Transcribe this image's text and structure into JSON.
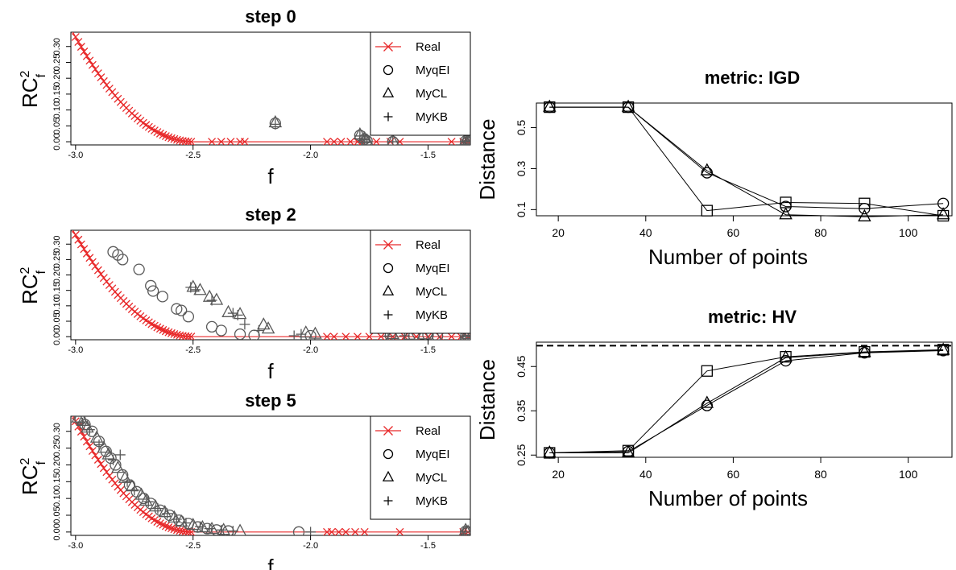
{
  "colors": {
    "real": "#e8292a",
    "marker": "#595959",
    "axis": "#000000"
  },
  "chart_data": [
    {
      "id": "step0",
      "type": "scatter",
      "title": "step 0",
      "xlabel": "f",
      "ylabel_base": "RC",
      "ylabel_sup": "2",
      "ylabel_sub": "f",
      "xlim": [
        -3.02,
        -1.32
      ],
      "ylim": [
        -0.01,
        0.345
      ],
      "xticks": [
        -3.0,
        -2.5,
        -2.0,
        -1.5
      ],
      "xtick_labels": [
        "-3.0",
        "-2.5",
        "-2.0",
        "-1.5"
      ],
      "yticks": [
        0.0,
        0.1,
        0.2,
        0.3
      ],
      "ytick_labels": [
        "0.00",
        "0.10",
        "0.20",
        "0.30"
      ],
      "yticks_minor": [
        0.05,
        0.15,
        0.25
      ],
      "ytick_minor_labels": [
        "0.05",
        "0.15",
        "0.25"
      ],
      "legend": {
        "position": "top-right",
        "entries": [
          {
            "label": "Real",
            "marker": "x-line"
          },
          {
            "label": "MyqEI",
            "marker": "circle"
          },
          {
            "label": "MyCL",
            "marker": "triangle"
          },
          {
            "label": "MyKB",
            "marker": "plus"
          }
        ]
      },
      "real_x": [
        -1.33,
        -1.35,
        -1.4,
        -1.62,
        -1.66,
        -1.72,
        -1.78,
        -1.8,
        -1.83,
        -1.87,
        -1.9,
        -1.93,
        -2.28,
        -2.3,
        -2.34,
        -2.38,
        -2.42
      ],
      "series": [
        {
          "name": "MyqEI",
          "marker": "circle",
          "points": [
            [
              -2.15,
              0.058
            ],
            [
              -1.79,
              0.02
            ],
            [
              -1.77,
              0.008
            ],
            [
              -1.76,
              0.003
            ],
            [
              -1.65,
              0.0
            ],
            [
              -1.34,
              0.002
            ],
            [
              -1.33,
              0.0
            ],
            [
              -1.32,
              0.005
            ]
          ]
        },
        {
          "name": "MyCL",
          "marker": "triangle",
          "points": [
            [
              -2.15,
              0.06
            ],
            [
              -1.79,
              0.022
            ],
            [
              -1.77,
              0.01
            ],
            [
              -1.76,
              0.003
            ],
            [
              -1.65,
              0.002
            ],
            [
              -1.34,
              0.004
            ],
            [
              -1.33,
              0.0
            ],
            [
              -1.32,
              0.006
            ]
          ]
        },
        {
          "name": "MyKB",
          "marker": "plus",
          "points": [
            [
              -2.15,
              0.055
            ],
            [
              -1.79,
              0.018
            ],
            [
              -1.77,
              0.006
            ],
            [
              -1.76,
              0.0
            ],
            [
              -1.65,
              0.0
            ],
            [
              -1.34,
              0.0
            ],
            [
              -1.33,
              0.003
            ],
            [
              -1.32,
              0.0
            ]
          ]
        }
      ]
    },
    {
      "id": "step2",
      "type": "scatter",
      "title": "step 2",
      "xlabel": "f",
      "ylabel_base": "RC",
      "ylabel_sup": "2",
      "ylabel_sub": "f",
      "xlim": [
        -3.02,
        -1.32
      ],
      "ylim": [
        -0.01,
        0.345
      ],
      "xticks": [
        -3.0,
        -2.5,
        -2.0,
        -1.5
      ],
      "xtick_labels": [
        "-3.0",
        "-2.5",
        "-2.0",
        "-1.5"
      ],
      "yticks": [
        0.0,
        0.1,
        0.2,
        0.3
      ],
      "ytick_labels": [
        "0.00",
        "0.10",
        "0.20",
        "0.30"
      ],
      "yticks_minor": [
        0.05,
        0.15,
        0.25
      ],
      "ytick_minor_labels": [
        "0.05",
        "0.15",
        "0.25"
      ],
      "legend": {
        "position": "top-right",
        "entries": [
          {
            "label": "Real",
            "marker": "x-line"
          },
          {
            "label": "MyqEI",
            "marker": "circle"
          },
          {
            "label": "MyCL",
            "marker": "triangle"
          },
          {
            "label": "MyKB",
            "marker": "plus"
          }
        ]
      },
      "real_x": [
        -1.33,
        -1.36,
        -1.4,
        -1.45,
        -1.5,
        -1.55,
        -1.6,
        -1.65,
        -1.7,
        -1.75,
        -1.8,
        -1.85,
        -1.9,
        -1.93
      ],
      "series": [
        {
          "name": "MyqEI",
          "marker": "circle",
          "points": [
            [
              -2.84,
              0.275
            ],
            [
              -2.82,
              0.265
            ],
            [
              -2.8,
              0.25
            ],
            [
              -2.73,
              0.218
            ],
            [
              -2.68,
              0.165
            ],
            [
              -2.67,
              0.148
            ],
            [
              -2.63,
              0.13
            ],
            [
              -2.57,
              0.09
            ],
            [
              -2.55,
              0.085
            ],
            [
              -2.52,
              0.065
            ],
            [
              -2.42,
              0.032
            ],
            [
              -2.38,
              0.02
            ],
            [
              -2.3,
              0.008
            ],
            [
              -2.24,
              0.004
            ],
            [
              -2.0,
              0.003
            ],
            [
              -1.66,
              0.003
            ],
            [
              -1.56,
              0.002
            ],
            [
              -1.5,
              0.005
            ],
            [
              -1.46,
              0.002
            ],
            [
              -1.34,
              0.0
            ],
            [
              -1.33,
              0.002
            ]
          ]
        },
        {
          "name": "MyCL",
          "marker": "triangle",
          "points": [
            [
              -2.5,
              0.16
            ],
            [
              -2.47,
              0.15
            ],
            [
              -2.43,
              0.128
            ],
            [
              -2.4,
              0.118
            ],
            [
              -2.35,
              0.078
            ],
            [
              -2.3,
              0.072
            ],
            [
              -2.2,
              0.038
            ],
            [
              -2.18,
              0.025
            ],
            [
              -2.02,
              0.012
            ],
            [
              -1.98,
              0.008
            ],
            [
              -1.65,
              0.007
            ],
            [
              -1.58,
              0.005
            ],
            [
              -1.52,
              0.006
            ],
            [
              -1.47,
              0.003
            ],
            [
              -1.34,
              0.003
            ],
            [
              -1.33,
              0.007
            ]
          ]
        },
        {
          "name": "MyKB",
          "marker": "plus",
          "points": [
            [
              -2.51,
              0.16
            ],
            [
              -2.49,
              0.152
            ],
            [
              -2.42,
              0.118
            ],
            [
              -2.33,
              0.076
            ],
            [
              -2.31,
              0.07
            ],
            [
              -2.28,
              0.04
            ],
            [
              -2.22,
              0.02
            ],
            [
              -2.07,
              0.003
            ],
            [
              -2.04,
              0.008
            ],
            [
              -1.67,
              0.002
            ],
            [
              -1.6,
              0.003
            ],
            [
              -1.34,
              0.0
            ],
            [
              -1.33,
              0.004
            ]
          ]
        }
      ]
    },
    {
      "id": "step5",
      "type": "scatter",
      "title": "step 5",
      "xlabel": "f",
      "ylabel_base": "RC",
      "ylabel_sup": "2",
      "ylabel_sub": "f",
      "xlim": [
        -3.02,
        -1.32
      ],
      "ylim": [
        -0.01,
        0.345
      ],
      "xticks": [
        -3.0,
        -2.5,
        -2.0,
        -1.5
      ],
      "xtick_labels": [
        "-3.0",
        "-2.5",
        "-2.0",
        "-1.5"
      ],
      "yticks": [
        0.0,
        0.1,
        0.2,
        0.3
      ],
      "ytick_labels": [
        "0.00",
        "0.10",
        "0.20",
        "0.30"
      ],
      "yticks_minor": [
        0.05,
        0.15,
        0.25
      ],
      "ytick_minor_labels": [
        "0.05",
        "0.15",
        "0.25"
      ],
      "legend": {
        "position": "top-right",
        "entries": [
          {
            "label": "Real",
            "marker": "x-line"
          },
          {
            "label": "MyqEI",
            "marker": "circle"
          },
          {
            "label": "MyCL",
            "marker": "triangle"
          },
          {
            "label": "MyKB",
            "marker": "plus"
          }
        ]
      },
      "real_x": [
        -1.33,
        -1.35,
        -1.62,
        -1.77,
        -1.81,
        -1.85,
        -1.88,
        -1.91,
        -1.93
      ],
      "series": [
        {
          "name": "MyqEI",
          "marker": "circle",
          "points": [
            [
              -2.98,
              0.335
            ],
            [
              -2.96,
              0.32
            ],
            [
              -2.93,
              0.3
            ],
            [
              -2.9,
              0.27
            ],
            [
              -2.87,
              0.24
            ],
            [
              -2.85,
              0.22
            ],
            [
              -2.83,
              0.2
            ],
            [
              -2.8,
              0.17
            ],
            [
              -2.77,
              0.14
            ],
            [
              -2.74,
              0.12
            ],
            [
              -2.71,
              0.1
            ],
            [
              -2.68,
              0.085
            ],
            [
              -2.64,
              0.065
            ],
            [
              -2.6,
              0.05
            ],
            [
              -2.56,
              0.035
            ],
            [
              -2.52,
              0.025
            ],
            [
              -2.48,
              0.015
            ],
            [
              -2.44,
              0.01
            ],
            [
              -2.4,
              0.006
            ],
            [
              -2.35,
              0.003
            ],
            [
              -2.05,
              0.0
            ],
            [
              -1.34,
              0.002
            ],
            [
              -1.33,
              0.0
            ]
          ]
        },
        {
          "name": "MyCL",
          "marker": "triangle",
          "points": [
            [
              -2.99,
              0.34
            ],
            [
              -2.97,
              0.33
            ],
            [
              -2.95,
              0.31
            ],
            [
              -2.91,
              0.28
            ],
            [
              -2.88,
              0.25
            ],
            [
              -2.86,
              0.23
            ],
            [
              -2.82,
              0.19
            ],
            [
              -2.79,
              0.16
            ],
            [
              -2.76,
              0.135
            ],
            [
              -2.72,
              0.11
            ],
            [
              -2.7,
              0.092
            ],
            [
              -2.66,
              0.075
            ],
            [
              -2.62,
              0.058
            ],
            [
              -2.58,
              0.042
            ],
            [
              -2.55,
              0.03
            ],
            [
              -2.5,
              0.02
            ],
            [
              -2.46,
              0.013
            ],
            [
              -2.42,
              0.008
            ],
            [
              -2.37,
              0.005
            ],
            [
              -2.3,
              0.002
            ],
            [
              -1.34,
              0.005
            ],
            [
              -1.33,
              0.0
            ]
          ]
        },
        {
          "name": "MyKB",
          "marker": "plus",
          "points": [
            [
              -2.97,
              0.325
            ],
            [
              -2.94,
              0.305
            ],
            [
              -2.9,
              0.26
            ],
            [
              -2.84,
              0.215
            ],
            [
              -2.81,
              0.23
            ],
            [
              -2.78,
              0.15
            ],
            [
              -2.75,
              0.125
            ],
            [
              -2.69,
              0.09
            ],
            [
              -2.65,
              0.07
            ],
            [
              -2.61,
              0.055
            ],
            [
              -2.57,
              0.038
            ],
            [
              -2.53,
              0.027
            ],
            [
              -2.47,
              0.016
            ],
            [
              -2.43,
              0.01
            ],
            [
              -2.38,
              0.006
            ],
            [
              -2.33,
              0.003
            ],
            [
              -2.0,
              0.0
            ],
            [
              -1.34,
              0.0
            ]
          ]
        }
      ]
    },
    {
      "id": "igd",
      "type": "line",
      "title": "metric: IGD",
      "xlabel": "Number of points",
      "ylabel": "Distance",
      "xlim": [
        15,
        110
      ],
      "ylim": [
        0.07,
        0.62
      ],
      "xticks": [
        20,
        40,
        60,
        80,
        100
      ],
      "xtick_labels": [
        "20",
        "40",
        "60",
        "80",
        "100"
      ],
      "yticks": [
        0.1,
        0.3,
        0.5
      ],
      "ytick_labels": [
        "0.1",
        "0.3",
        "0.5"
      ],
      "x": [
        18,
        36,
        54,
        72,
        90,
        108
      ],
      "series": [
        {
          "marker": "square",
          "values": [
            0.6,
            0.6,
            0.095,
            0.135,
            0.13,
            0.07
          ]
        },
        {
          "marker": "circle",
          "values": [
            0.6,
            0.6,
            0.28,
            0.115,
            0.105,
            0.13
          ]
        },
        {
          "marker": "triangle",
          "values": [
            0.6,
            0.6,
            0.29,
            0.075,
            0.065,
            0.075
          ]
        }
      ]
    },
    {
      "id": "hv",
      "type": "line",
      "title": "metric: HV",
      "xlabel": "Number of points",
      "ylabel": "Distance",
      "xlim": [
        15,
        110
      ],
      "ylim": [
        0.245,
        0.505
      ],
      "xticks": [
        20,
        40,
        60,
        80,
        100
      ],
      "xtick_labels": [
        "20",
        "40",
        "60",
        "80",
        "100"
      ],
      "yticks": [
        0.25,
        0.35,
        0.45
      ],
      "ytick_labels": [
        "0.25",
        "0.35",
        "0.45"
      ],
      "reference_line": 0.497,
      "x": [
        18,
        36,
        54,
        72,
        90,
        108
      ],
      "series": [
        {
          "marker": "square",
          "values": [
            0.255,
            0.26,
            0.44,
            0.472,
            0.483,
            0.488
          ]
        },
        {
          "marker": "circle",
          "values": [
            0.255,
            0.258,
            0.362,
            0.463,
            0.481,
            0.486
          ]
        },
        {
          "marker": "triangle",
          "values": [
            0.255,
            0.255,
            0.367,
            0.47,
            0.482,
            0.487
          ]
        }
      ]
    }
  ]
}
